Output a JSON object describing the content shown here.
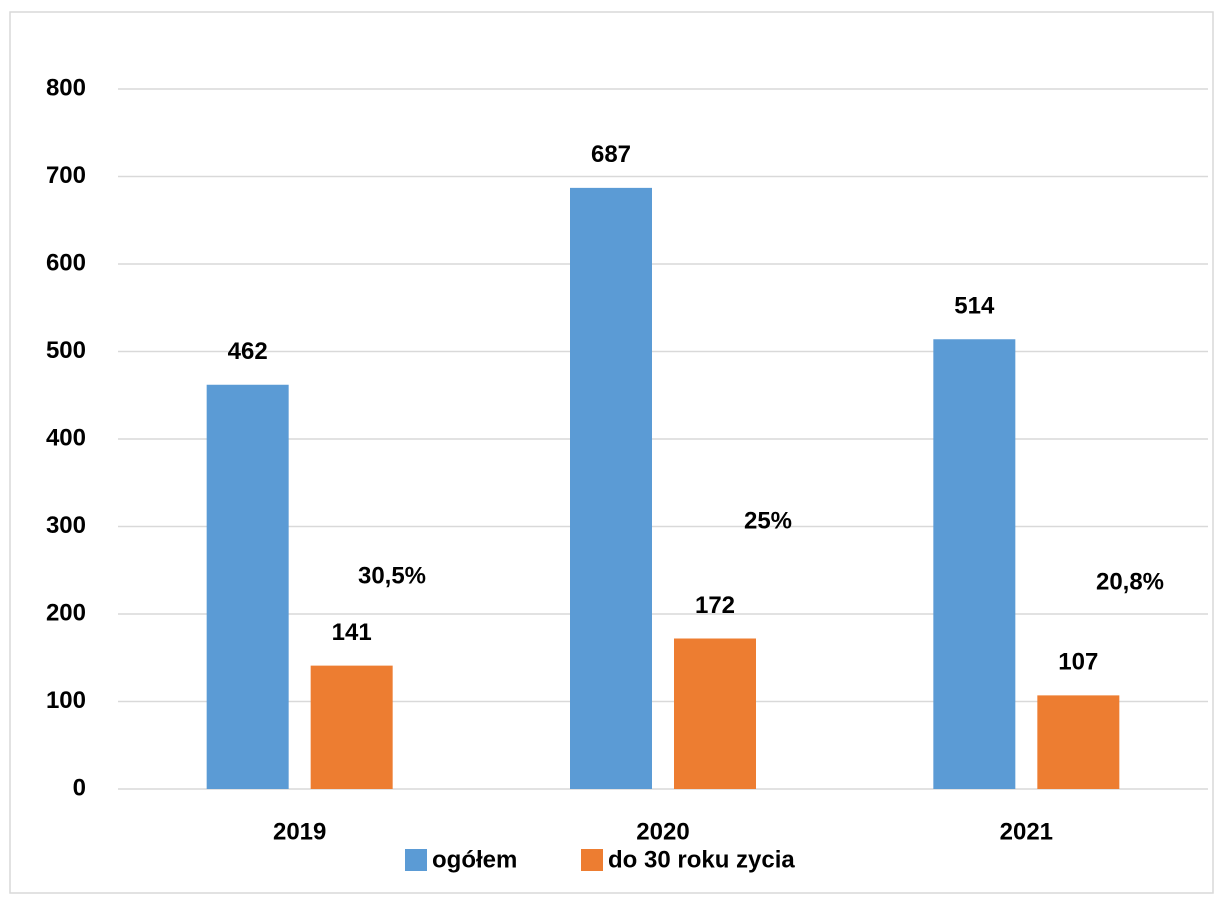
{
  "chart_data": {
    "type": "bar",
    "categories": [
      "2019",
      "2020",
      "2021"
    ],
    "series": [
      {
        "name": "ogółem",
        "color": "#5b9bd5",
        "values": [
          462,
          687,
          514
        ]
      },
      {
        "name": "do 30 roku zycia",
        "color": "#ed7d31",
        "values": [
          141,
          172,
          107
        ]
      }
    ],
    "annotations": [
      "30,5%",
      "25%",
      "20,8%"
    ],
    "ylim": [
      0,
      800
    ],
    "yticks": [
      0,
      100,
      200,
      300,
      400,
      500,
      600,
      700,
      800
    ],
    "grid": true,
    "legend": "bottom"
  }
}
